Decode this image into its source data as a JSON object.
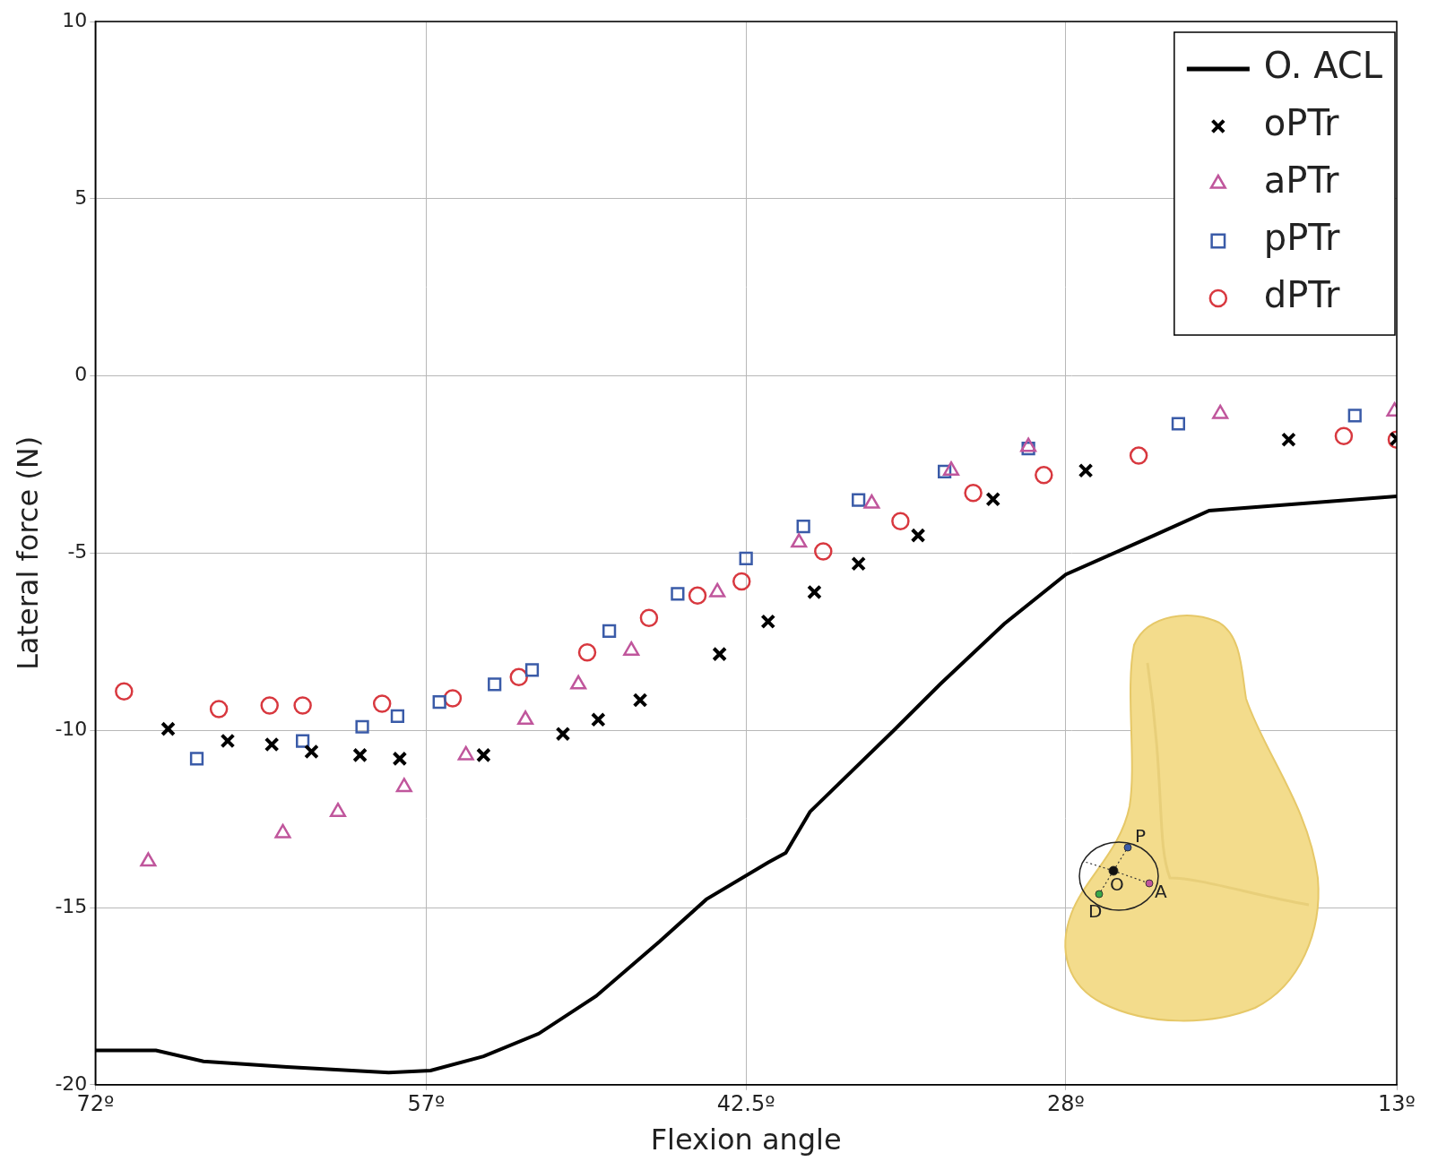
{
  "chart_data": {
    "type": "scatter",
    "x_label": "Flexion angle",
    "y_label": "Lateral force (N)",
    "xlim": [
      13,
      72
    ],
    "xticks": [
      {
        "value": 72,
        "label": "72º"
      },
      {
        "value": 57,
        "label": "57º"
      },
      {
        "value": 42.5,
        "label": "42.5º"
      },
      {
        "value": 28,
        "label": "28º"
      },
      {
        "value": 13,
        "label": "13º"
      }
    ],
    "ylim": [
      -20,
      10
    ],
    "yticks": [
      -20,
      -15,
      -10,
      -5,
      0,
      5,
      10
    ],
    "grid": true,
    "legend": "top right",
    "series": [
      {
        "name": "O. ACL",
        "type": "line",
        "color": "#000000",
        "marker": "none",
        "line_style": "solid",
        "x": [
          72,
          69.25,
          67.1,
          63.3,
          58.7,
          56.8,
          54.4,
          51.9,
          49.3,
          46.4,
          44.3,
          41.5,
          40.7,
          39.6,
          35.8,
          33.7,
          30.8,
          28,
          24,
          21.5,
          13
        ],
        "values": [
          -19.03,
          -19.03,
          -19.34,
          -19.5,
          -19.66,
          -19.6,
          -19.2,
          -18.56,
          -17.5,
          -15.95,
          -14.77,
          -13.73,
          -13.46,
          -12.3,
          -10,
          -8.7,
          -7.0,
          -5.6,
          -4.5,
          -3.8,
          -3.4
        ]
      },
      {
        "name": "oPTr",
        "type": "scatter",
        "color": "#000000",
        "marker": "x",
        "x": [
          68.7,
          66.0,
          64.0,
          62.2,
          60.0,
          58.2,
          54.4,
          50.8,
          49.2,
          47.3,
          43.7,
          41.5,
          39.4,
          37.4,
          34.7,
          31.3,
          27.1,
          17.9,
          13.0
        ],
        "values": [
          -9.96,
          -10.3,
          -10.4,
          -10.6,
          -10.7,
          -10.8,
          -10.7,
          -10.1,
          -9.7,
          -9.15,
          -7.85,
          -6.93,
          -6.1,
          -5.3,
          -4.5,
          -3.48,
          -2.67,
          -1.8,
          -1.78
        ]
      },
      {
        "name": "aPTr",
        "type": "scatter",
        "color": "#c0569c",
        "marker": "triangle",
        "x": [
          69.6,
          63.5,
          61.0,
          58.0,
          55.2,
          52.5,
          50.1,
          47.7,
          43.8,
          40.1,
          36.8,
          33.2,
          29.7,
          21.0,
          13.1
        ],
        "values": [
          -13.7,
          -12.9,
          -12.3,
          -11.6,
          -10.7,
          -9.7,
          -8.7,
          -7.75,
          -6.1,
          -4.7,
          -3.6,
          -2.67,
          -2.0,
          -1.07,
          -1.0
        ]
      },
      {
        "name": "pPTr",
        "type": "scatter",
        "color": "#3a5ba8",
        "marker": "square",
        "x": [
          67.4,
          62.6,
          59.9,
          58.3,
          56.4,
          53.9,
          52.2,
          48.7,
          45.6,
          42.5,
          39.9,
          37.4,
          33.5,
          29.7,
          22.9,
          14.9
        ],
        "values": [
          -10.8,
          -10.3,
          -9.9,
          -9.6,
          -9.2,
          -8.7,
          -8.3,
          -7.2,
          -6.15,
          -5.15,
          -4.25,
          -3.5,
          -2.7,
          -2.05,
          -1.35,
          -1.12
        ]
      },
      {
        "name": "dPTr",
        "type": "scatter",
        "color": "#d8383f",
        "marker": "circle",
        "x": [
          70.7,
          66.4,
          64.1,
          62.6,
          59.0,
          55.8,
          52.8,
          49.7,
          46.9,
          44.7,
          42.7,
          39.0,
          35.5,
          32.2,
          29.0,
          24.7,
          15.4,
          13.0
        ],
        "values": [
          -8.9,
          -9.4,
          -9.3,
          -9.3,
          -9.25,
          -9.1,
          -8.5,
          -7.8,
          -6.83,
          -6.2,
          -5.8,
          -4.95,
          -4.1,
          -3.3,
          -2.8,
          -2.25,
          -1.7,
          -1.8
        ]
      }
    ]
  },
  "inset": {
    "labels": [
      "P",
      "O",
      "A",
      "D"
    ]
  }
}
